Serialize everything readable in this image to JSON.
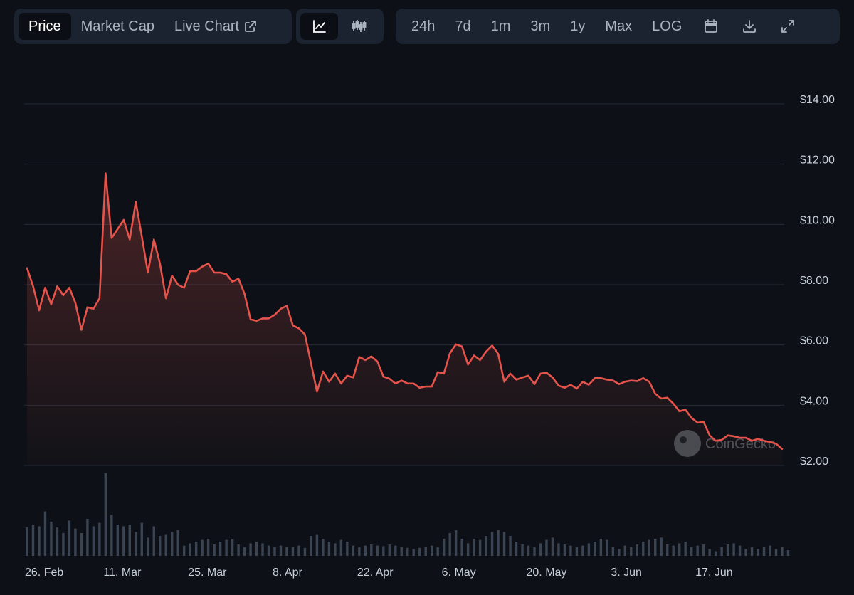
{
  "tabs": {
    "price_label": "Price",
    "market_cap_label": "Market Cap",
    "live_chart_label": "Live Chart"
  },
  "chart_type_icons": [
    "line-chart-icon",
    "candlestick-chart-icon"
  ],
  "ranges": {
    "r24h": "24h",
    "r7d": "7d",
    "r1m": "1m",
    "r3m": "3m",
    "r1y": "1y",
    "rmax": "Max",
    "log": "LOG"
  },
  "tool_icons": [
    "calendar-icon",
    "download-icon",
    "fullscreen-icon"
  ],
  "watermark": "CoinGecko",
  "colors": {
    "line": "#e5534b",
    "volume": "#3b4452",
    "grid": "#242b36",
    "background": "#0d1117"
  },
  "chart_data": {
    "type": "line",
    "y_ticks": [
      "$14.00",
      "$12.00",
      "$10.00",
      "$8.00",
      "$6.00",
      "$4.00",
      "$2.00"
    ],
    "ylim": [
      2,
      14
    ],
    "x_ticks": [
      {
        "label": "26. Feb",
        "index": 0
      },
      {
        "label": "11. Mar",
        "index": 13
      },
      {
        "label": "25. Mar",
        "index": 27
      },
      {
        "label": "8. Apr",
        "index": 41
      },
      {
        "label": "22. Apr",
        "index": 55
      },
      {
        "label": "6. May",
        "index": 69
      },
      {
        "label": "20. May",
        "index": 83
      },
      {
        "label": "3. Jun",
        "index": 97
      },
      {
        "label": "17. Jun",
        "index": 111
      }
    ],
    "series": [
      {
        "values": [
          8.55,
          7.95,
          7.15,
          7.9,
          7.35,
          7.95,
          7.65,
          7.9,
          7.4,
          6.5,
          7.25,
          7.2,
          7.55,
          11.7,
          9.55,
          9.85,
          10.15,
          9.5,
          10.75,
          9.6,
          8.4,
          9.5,
          8.7,
          7.55,
          8.3,
          8.0,
          7.9,
          8.45,
          8.45,
          8.6,
          8.7,
          8.4,
          8.4,
          8.35,
          8.1,
          8.2,
          7.7,
          6.85,
          6.8,
          6.88,
          6.88,
          7.0,
          7.2,
          7.3,
          6.65,
          6.55,
          6.35,
          5.4,
          4.45,
          5.12,
          4.78,
          5.05,
          4.72,
          4.98,
          4.92,
          5.6,
          5.5,
          5.62,
          5.45,
          4.95,
          4.88,
          4.72,
          4.82,
          4.72,
          4.72,
          4.58,
          4.62,
          4.62,
          5.1,
          5.05,
          5.72,
          6.02,
          5.95,
          5.35,
          5.65,
          5.5,
          5.78,
          5.98,
          5.7,
          4.78,
          5.05,
          4.85,
          4.92,
          4.98,
          4.7,
          5.05,
          5.08,
          4.92,
          4.65,
          4.58,
          4.68,
          4.55,
          4.78,
          4.68,
          4.9,
          4.9,
          4.85,
          4.82,
          4.7,
          4.78,
          4.82,
          4.8,
          4.9,
          4.78,
          4.38,
          4.22,
          4.25,
          4.05,
          3.8,
          3.85,
          3.58,
          3.42,
          3.45,
          3.0,
          2.82,
          2.85,
          3.0,
          2.97,
          2.92,
          2.92,
          2.82,
          2.88,
          2.82,
          2.78,
          2.72,
          2.55
        ]
      }
    ],
    "volume": [
      0.5,
      0.55,
      0.52,
      0.78,
      0.6,
      0.5,
      0.4,
      0.62,
      0.48,
      0.4,
      0.65,
      0.52,
      0.58,
      1.45,
      0.72,
      0.55,
      0.52,
      0.55,
      0.42,
      0.58,
      0.32,
      0.52,
      0.35,
      0.38,
      0.42,
      0.45,
      0.18,
      0.22,
      0.25,
      0.28,
      0.3,
      0.2,
      0.25,
      0.28,
      0.3,
      0.2,
      0.15,
      0.22,
      0.25,
      0.22,
      0.18,
      0.15,
      0.18,
      0.15,
      0.15,
      0.18,
      0.14,
      0.35,
      0.38,
      0.3,
      0.25,
      0.22,
      0.28,
      0.25,
      0.18,
      0.15,
      0.18,
      0.2,
      0.18,
      0.17,
      0.2,
      0.18,
      0.15,
      0.14,
      0.12,
      0.14,
      0.15,
      0.18,
      0.15,
      0.3,
      0.4,
      0.45,
      0.3,
      0.22,
      0.3,
      0.28,
      0.35,
      0.42,
      0.45,
      0.42,
      0.35,
      0.25,
      0.2,
      0.18,
      0.15,
      0.22,
      0.28,
      0.32,
      0.22,
      0.2,
      0.18,
      0.15,
      0.18,
      0.22,
      0.25,
      0.3,
      0.28,
      0.15,
      0.12,
      0.18,
      0.15,
      0.2,
      0.25,
      0.28,
      0.3,
      0.32,
      0.2,
      0.18,
      0.22,
      0.25,
      0.15,
      0.18,
      0.2,
      0.12,
      0.08,
      0.15,
      0.2,
      0.22,
      0.18,
      0.12,
      0.15,
      0.12,
      0.15,
      0.18,
      0.12,
      0.15,
      0.1
    ]
  }
}
